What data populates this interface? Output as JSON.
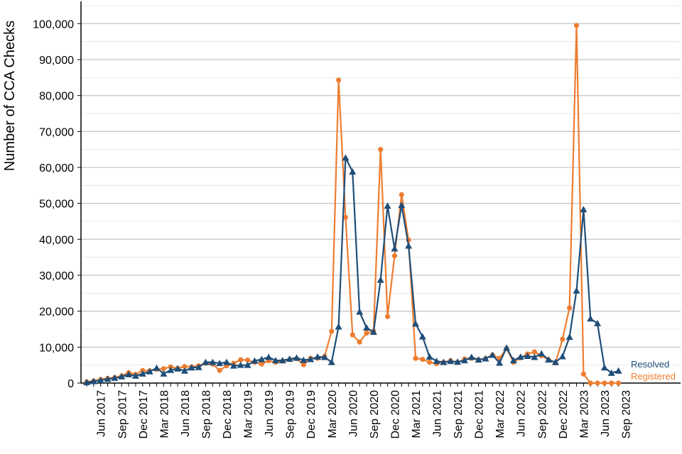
{
  "chart_data": {
    "type": "line",
    "ylabel": "Number of CCA Checks",
    "xlabel": "",
    "ylim": [
      0,
      105000
    ],
    "grid": true,
    "y_ticks": [
      0,
      10000,
      20000,
      30000,
      40000,
      50000,
      60000,
      70000,
      80000,
      90000,
      100000
    ],
    "y_tick_labels": [
      "0",
      "10,000",
      "20,000",
      "30,000",
      "40,000",
      "50,000",
      "60,000",
      "70,000",
      "80,000",
      "90,000",
      "100,000"
    ],
    "x_tick_labels": [
      "Jun 2017",
      "Sep 2017",
      "Dec 2017",
      "Mar 2018",
      "Jun 2018",
      "Sep 2018",
      "Dec 2018",
      "Mar 2019",
      "Jun 2019",
      "Sep 2019",
      "Dec 2019",
      "Mar 2020",
      "Jun 2020",
      "Sep 2020",
      "Dec 2020",
      "Mar 2021",
      "Jun 2021",
      "Sep 2021",
      "Dec 2021",
      "Mar 2022",
      "Jun 2022",
      "Sep 2022",
      "Dec 2022",
      "Mar 2023",
      "Jun 2023",
      "Sep 2023"
    ],
    "legend_placement": "right, at line ends",
    "x_start": "Apr 2017",
    "x_end": "Oct 2023",
    "series": [
      {
        "name": "Resolved",
        "color": "#1f4e79",
        "marker": "triangle",
        "values": [
          200,
          500,
          800,
          1100,
          1400,
          1800,
          2400,
          2000,
          2600,
          3200,
          4200,
          2600,
          3600,
          4000,
          3400,
          4300,
          4400,
          5800,
          5800,
          5500,
          5800,
          4800,
          5000,
          5000,
          6200,
          6600,
          7200,
          6300,
          6300,
          6700,
          7000,
          6400,
          6600,
          7300,
          7200,
          5800,
          15700,
          62700,
          58800,
          19800,
          15400,
          14200,
          28700,
          49300,
          37400,
          49500,
          38200,
          16500,
          12900,
          7300,
          6100,
          5800,
          6100,
          5900,
          6300,
          7200,
          6500,
          6800,
          7800,
          5600,
          9800,
          6300,
          7300,
          7500,
          7200,
          8200,
          6500,
          5800,
          7400,
          12800,
          25700,
          48300,
          17900,
          16600,
          4300,
          2800,
          3400
        ]
      },
      {
        "name": "Registered",
        "color": "#ed7d31",
        "marker": "circle",
        "values": [
          300,
          600,
          1000,
          1300,
          1500,
          2000,
          2900,
          2400,
          3500,
          3400,
          3800,
          4000,
          4500,
          4100,
          4600,
          4500,
          4800,
          5500,
          5300,
          3500,
          4800,
          5500,
          6500,
          6400,
          5800,
          5300,
          6200,
          5800,
          6100,
          6500,
          6800,
          5100,
          6900,
          6900,
          7400,
          14400,
          84300,
          46100,
          13400,
          11400,
          13900,
          14400,
          65000,
          18500,
          35400,
          52400,
          39800,
          6900,
          6600,
          5800,
          5400,
          5800,
          6200,
          5700,
          6700,
          6900,
          6500,
          6800,
          7800,
          6900,
          9600,
          5800,
          7000,
          8100,
          8700,
          7600,
          6500,
          5600,
          12200,
          20900,
          99500,
          2500,
          0,
          0,
          0,
          0,
          0
        ]
      }
    ]
  }
}
